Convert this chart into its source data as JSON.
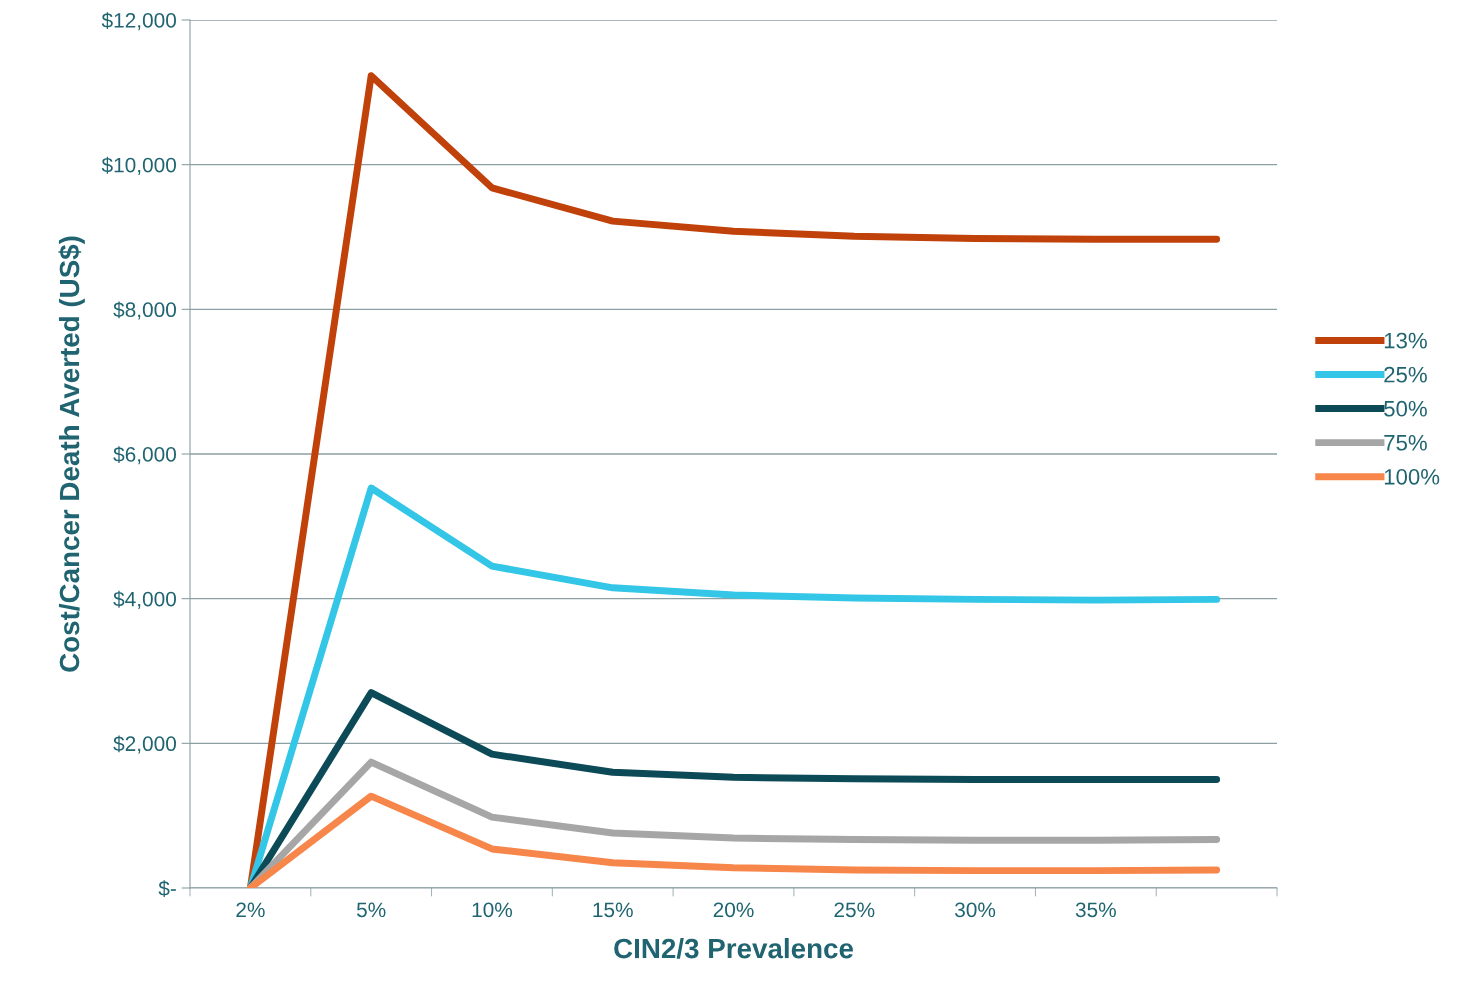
{
  "chart_data": {
    "type": "line",
    "xlabel": "CIN2/3 Prevalence",
    "ylabel": "Cost/Cancer Death Averted (US$)",
    "categories": [
      "2%",
      "5%",
      "10%",
      "15%",
      "20%",
      "25%",
      "30%",
      "35%",
      null
    ],
    "series": [
      {
        "name": "13%",
        "color": "#c0410a",
        "values": [
          0,
          11230,
          9680,
          9220,
          9080,
          9010,
          8980,
          8970,
          8970
        ]
      },
      {
        "name": "25%",
        "color": "#33c6e6",
        "values": [
          0,
          5530,
          4450,
          4150,
          4050,
          4010,
          3990,
          3980,
          3990
        ]
      },
      {
        "name": "50%",
        "color": "#0c4a57",
        "values": [
          0,
          2700,
          1850,
          1600,
          1530,
          1510,
          1500,
          1500,
          1500
        ]
      },
      {
        "name": "75%",
        "color": "#a6a6a6",
        "values": [
          0,
          1740,
          980,
          760,
          690,
          670,
          660,
          660,
          670
        ]
      },
      {
        "name": "100%",
        "color": "#f7864a",
        "values": [
          0,
          1270,
          540,
          350,
          280,
          250,
          240,
          240,
          250
        ]
      }
    ],
    "ylim": [
      0,
      12000
    ],
    "yticks": [
      {
        "value": 0,
        "label": "$-"
      },
      {
        "value": 2000,
        "label": "$2,000"
      },
      {
        "value": 4000,
        "label": "$4,000"
      },
      {
        "value": 6000,
        "label": "$6,000"
      },
      {
        "value": 8000,
        "label": "$8,000"
      },
      {
        "value": 10000,
        "label": "$10,000"
      },
      {
        "value": 12000,
        "label": "$12,000"
      }
    ],
    "grid": "y",
    "legend": "right",
    "marker": "none",
    "line_style": "solid"
  }
}
